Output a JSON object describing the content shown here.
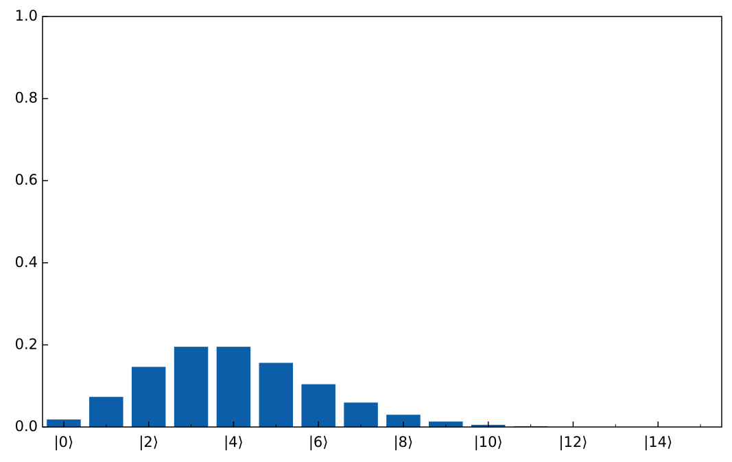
{
  "chart_data": {
    "type": "bar",
    "categories": [
      "|0⟩",
      null,
      "|2⟩",
      null,
      "|4⟩",
      null,
      "|6⟩",
      null,
      "|8⟩",
      null,
      "|10⟩",
      null,
      "|12⟩",
      null,
      "|14⟩",
      null
    ],
    "values": [
      0.0183,
      0.0733,
      0.1465,
      0.1954,
      0.1954,
      0.1563,
      0.1042,
      0.0595,
      0.0298,
      0.0132,
      0.0053,
      0.0019,
      0.0006,
      0.0002,
      0.0001,
      2e-05
    ],
    "color": "#0d5ea8",
    "ylim": [
      0,
      1
    ],
    "yticks": [
      {
        "value": 0,
        "label": "0.0"
      },
      0.2,
      0.4,
      0.6,
      0.8,
      {
        "value": 1,
        "label": "1.0"
      }
    ]
  }
}
